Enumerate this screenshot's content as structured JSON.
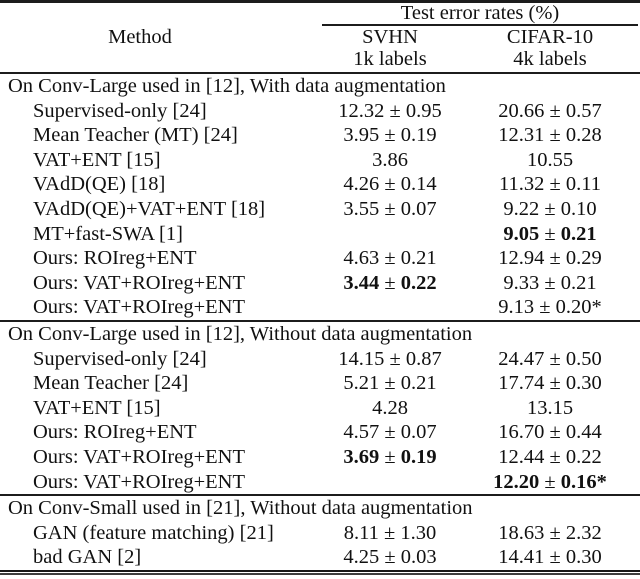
{
  "page": {
    "background": "#ffffff",
    "text_color": "#111111",
    "rule_color": "#1c1c1c"
  },
  "table": {
    "header": {
      "method_label": "Method",
      "span_label": "Test error rates (%)",
      "columns": [
        {
          "dataset": "SVHN",
          "labels": "1k labels"
        },
        {
          "dataset": "CIFAR-10",
          "labels": "4k labels"
        }
      ]
    },
    "sections": [
      {
        "title": "On Conv-Large used in [12], With data augmentation",
        "rows": [
          {
            "method": "Supervised-only [24]",
            "svhn": "12.32 ± 0.95",
            "cifar": "20.66 ± 0.57"
          },
          {
            "method": "Mean Teacher (MT) [24]",
            "svhn": "3.95 ± 0.19",
            "cifar": "12.31 ± 0.28"
          },
          {
            "method": "VAT+ENT [15]",
            "svhn": "3.86",
            "cifar": "10.55"
          },
          {
            "method": "VAdD(QE) [18]",
            "svhn": "4.26 ± 0.14",
            "cifar": "11.32 ± 0.11"
          },
          {
            "method": "VAdD(QE)+VAT+ENT [18]",
            "svhn": "3.55 ± 0.07",
            "cifar": "9.22 ± 0.10"
          },
          {
            "method": "MT+fast-SWA [1]",
            "svhn": "",
            "cifar": "9.05 ± 0.21",
            "cifar_bold": true
          },
          {
            "method": "Ours: ROIreg+ENT",
            "svhn": "4.63 ± 0.21",
            "cifar": "12.94 ± 0.29"
          },
          {
            "method": "Ours: VAT+ROIreg+ENT",
            "svhn": "3.44 ± 0.22",
            "svhn_bold": true,
            "cifar": "9.33 ± 0.21"
          },
          {
            "method": "Ours: VAT+ROIreg+ENT",
            "svhn": "",
            "cifar": "9.13 ± 0.20*"
          }
        ]
      },
      {
        "title": "On Conv-Large used in [12], Without data augmentation",
        "rows": [
          {
            "method": "Supervised-only [24]",
            "svhn": "14.15 ± 0.87",
            "cifar": "24.47 ± 0.50"
          },
          {
            "method": "Mean Teacher [24]",
            "svhn": "5.21 ± 0.21",
            "cifar": "17.74 ± 0.30"
          },
          {
            "method": "VAT+ENT [15]",
            "svhn": "4.28",
            "cifar": "13.15"
          },
          {
            "method": "Ours: ROIreg+ENT",
            "svhn": "4.57 ± 0.07",
            "cifar": "16.70 ± 0.44"
          },
          {
            "method": "Ours: VAT+ROIreg+ENT",
            "svhn": "3.69 ± 0.19",
            "svhn_bold": true,
            "cifar": "12.44 ± 0.22"
          },
          {
            "method": "Ours: VAT+ROIreg+ENT",
            "svhn": "",
            "cifar": "12.20 ± 0.16*",
            "cifar_bold": true
          }
        ]
      },
      {
        "title": "On Conv-Small used in [21], Without data augmentation",
        "rows": [
          {
            "method": "GAN (feature matching) [21]",
            "svhn": "8.11 ± 1.30",
            "cifar": "18.63 ± 2.32"
          },
          {
            "method": "bad GAN [2]",
            "svhn": "4.25 ± 0.03",
            "cifar": "14.41 ± 0.30"
          }
        ]
      }
    ]
  }
}
